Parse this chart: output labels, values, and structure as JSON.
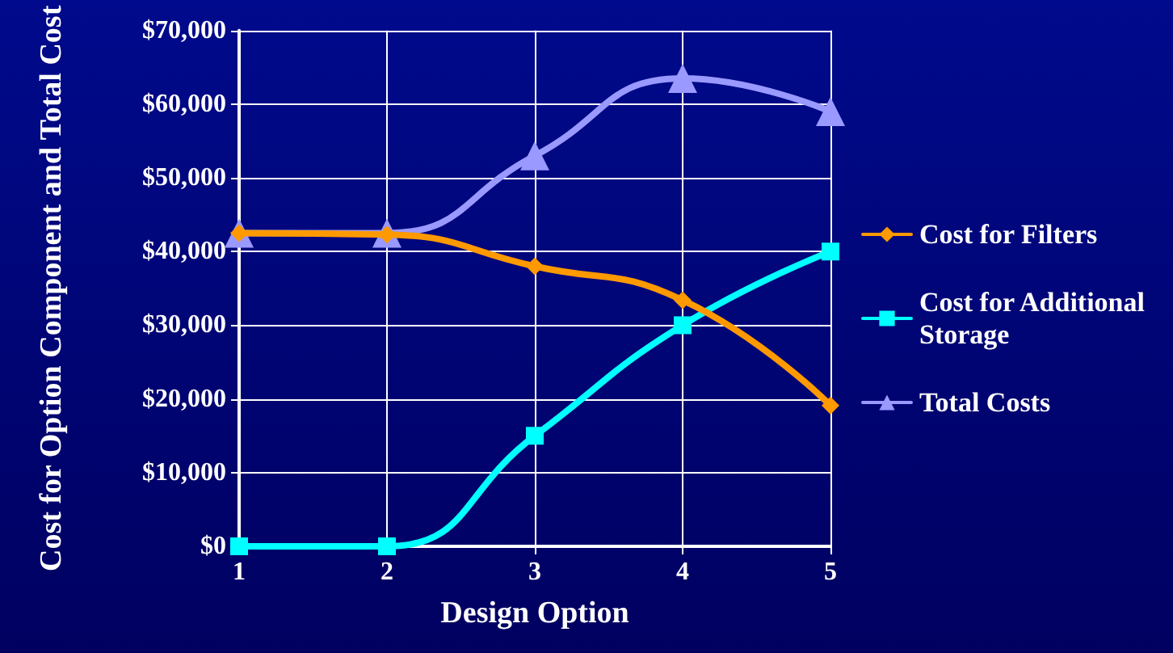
{
  "chart_data": {
    "type": "line",
    "xlabel": "Design Option",
    "ylabel": "Cost for Option Component and Total Cost",
    "x": [
      1,
      2,
      3,
      4,
      5
    ],
    "xlim": [
      1,
      5
    ],
    "xticks": [
      1,
      2,
      3,
      4,
      5
    ],
    "ylim": [
      0,
      70000
    ],
    "yticks": [
      {
        "value": 0,
        "label": "$0"
      },
      {
        "value": 10000,
        "label": "$10,000"
      },
      {
        "value": 20000,
        "label": "$20,000"
      },
      {
        "value": 30000,
        "label": "$30,000"
      },
      {
        "value": 40000,
        "label": "$40,000"
      },
      {
        "value": 50000,
        "label": "$50,000"
      },
      {
        "value": 60000,
        "label": "$60,000"
      },
      {
        "value": 70000,
        "label": "$70,000"
      }
    ],
    "grid": true,
    "legend": "right",
    "line_style": "solid",
    "series": [
      {
        "name": "Cost for Filters",
        "color": "#ff9900",
        "marker": "diamond",
        "values": [
          42500,
          42300,
          38000,
          33400,
          19100
        ]
      },
      {
        "name": "Cost for Additional Storage",
        "color": "#00ffff",
        "marker": "square",
        "values": [
          0,
          0,
          15000,
          30000,
          40000
        ]
      },
      {
        "name": "Total Costs",
        "color": "#9999ff",
        "marker": "triangle",
        "values": [
          42500,
          42500,
          53000,
          63500,
          59000
        ]
      }
    ]
  }
}
